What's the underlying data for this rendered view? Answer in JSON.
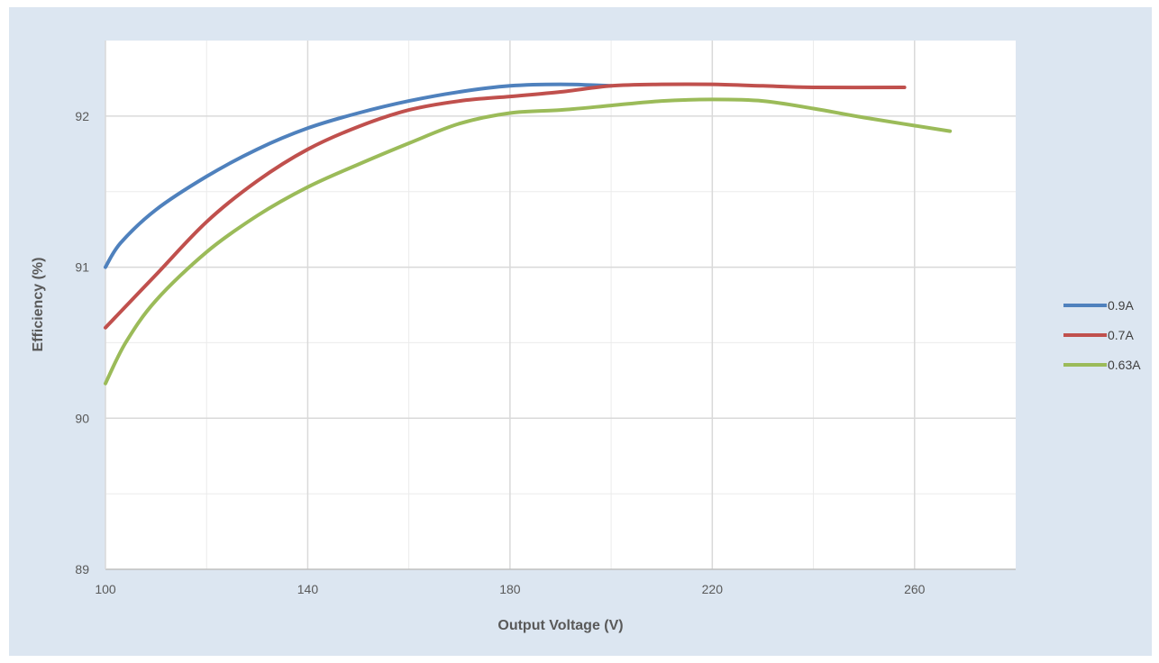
{
  "chart_data": {
    "type": "line",
    "title": "",
    "xlabel": "Output Voltage (V)",
    "ylabel": "Efficiency (%)",
    "xlim": [
      100,
      280
    ],
    "ylim": [
      89,
      92.5
    ],
    "x_ticks": [
      100,
      140,
      180,
      220,
      260
    ],
    "y_ticks": [
      89,
      90,
      91,
      92
    ],
    "grid": true,
    "legend_position": "right",
    "series": [
      {
        "name": "0.9A",
        "color": "#4f81bd",
        "points": [
          [
            100,
            91.0
          ],
          [
            103,
            91.16
          ],
          [
            110,
            91.38
          ],
          [
            120,
            91.6
          ],
          [
            130,
            91.78
          ],
          [
            140,
            91.92
          ],
          [
            150,
            92.02
          ],
          [
            160,
            92.1
          ],
          [
            170,
            92.16
          ],
          [
            180,
            92.2
          ],
          [
            190,
            92.21
          ],
          [
            200,
            92.2
          ]
        ]
      },
      {
        "name": "0.7A",
        "color": "#c0504d",
        "points": [
          [
            100,
            90.6
          ],
          [
            110,
            90.95
          ],
          [
            120,
            91.3
          ],
          [
            130,
            91.57
          ],
          [
            140,
            91.78
          ],
          [
            150,
            91.93
          ],
          [
            160,
            92.04
          ],
          [
            170,
            92.1
          ],
          [
            180,
            92.13
          ],
          [
            190,
            92.16
          ],
          [
            200,
            92.2
          ],
          [
            210,
            92.21
          ],
          [
            220,
            92.21
          ],
          [
            230,
            92.2
          ],
          [
            240,
            92.19
          ],
          [
            258,
            92.19
          ]
        ]
      },
      {
        "name": "0.63A",
        "color": "#9bbb59",
        "points": [
          [
            100,
            90.23
          ],
          [
            104,
            90.5
          ],
          [
            110,
            90.78
          ],
          [
            120,
            91.1
          ],
          [
            130,
            91.34
          ],
          [
            140,
            91.53
          ],
          [
            150,
            91.68
          ],
          [
            160,
            91.82
          ],
          [
            170,
            91.95
          ],
          [
            180,
            92.02
          ],
          [
            190,
            92.04
          ],
          [
            200,
            92.07
          ],
          [
            210,
            92.1
          ],
          [
            220,
            92.11
          ],
          [
            230,
            92.1
          ],
          [
            240,
            92.05
          ],
          [
            250,
            91.99
          ],
          [
            267,
            91.9
          ]
        ]
      }
    ]
  }
}
